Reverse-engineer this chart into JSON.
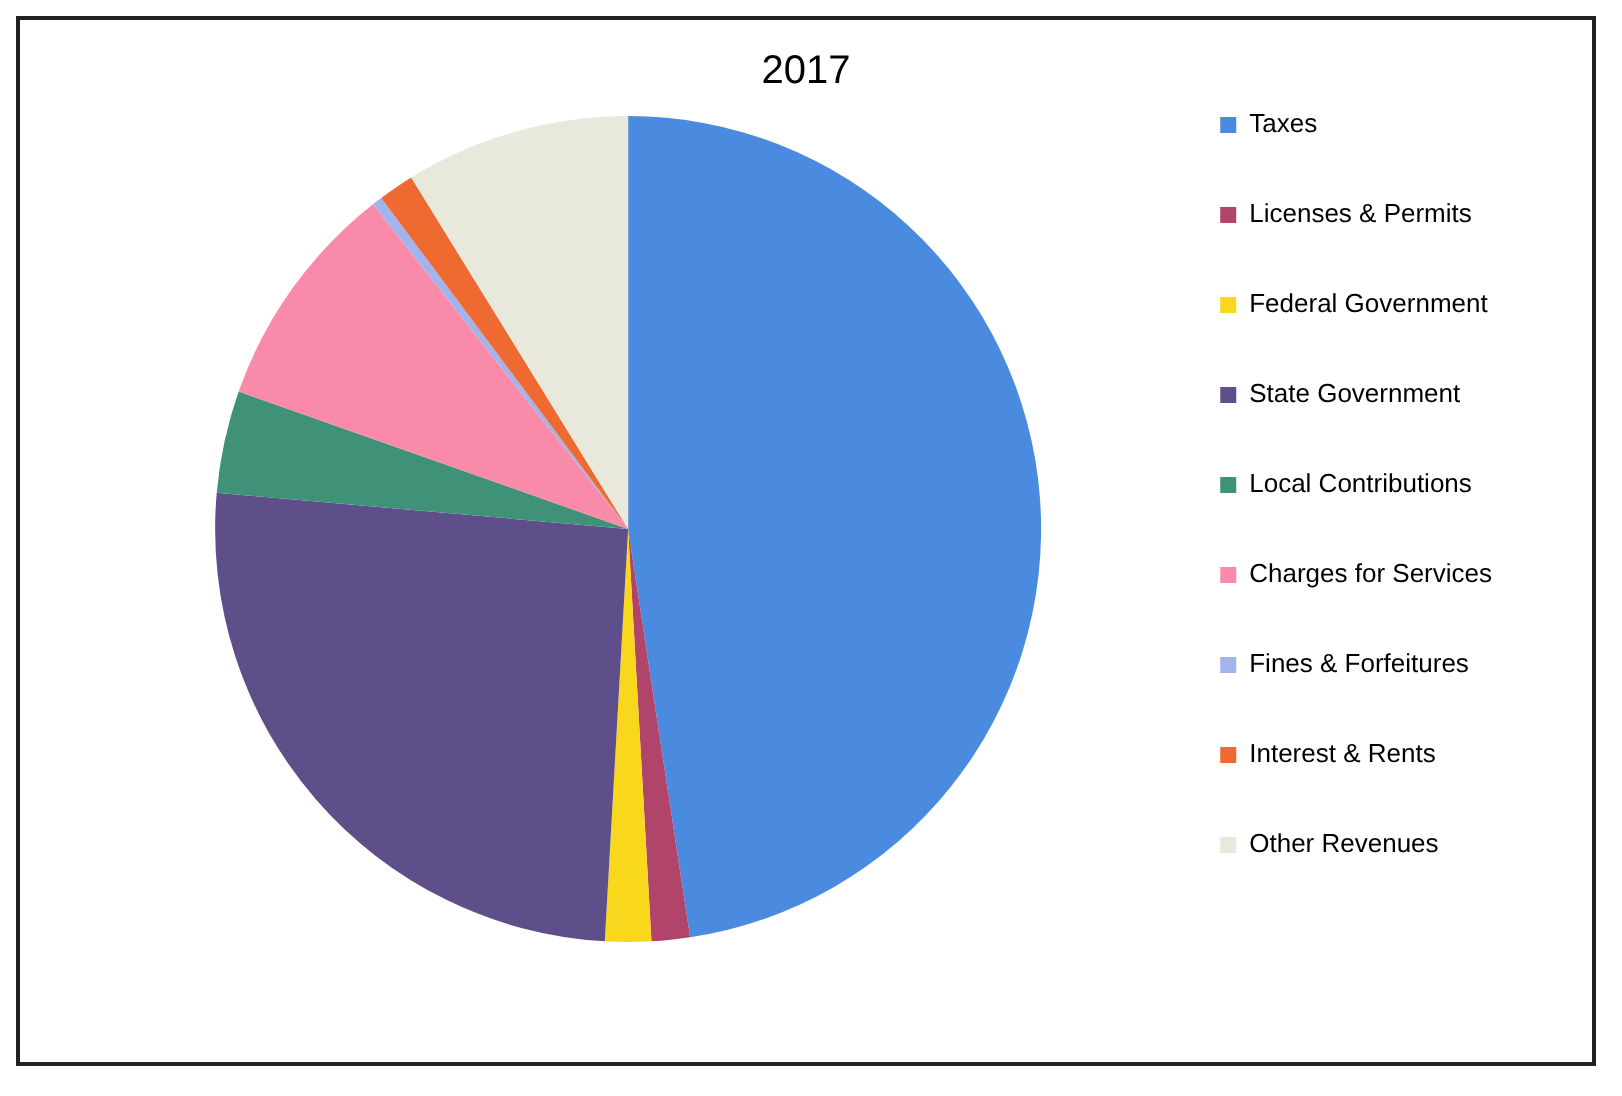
{
  "chart_data": {
    "type": "pie",
    "title": "2017",
    "categories": [
      "Taxes",
      "Licenses & Permits",
      "Federal Government",
      "State Government",
      "Local Contributions",
      "Charges for Services",
      "Fines & Forfeitures",
      "Interest & Rents",
      "Other Revenues"
    ],
    "values": [
      47.6,
      1.5,
      1.8,
      25.5,
      4.0,
      9.0,
      0.4,
      1.4,
      8.8
    ],
    "colors": [
      "#4a8be0",
      "#b0446b",
      "#f9d71c",
      "#5e4f8a",
      "#3f9277",
      "#f98aa9",
      "#a3b3ec",
      "#ee6a30",
      "#e8e8dc"
    ],
    "legend": "right"
  }
}
